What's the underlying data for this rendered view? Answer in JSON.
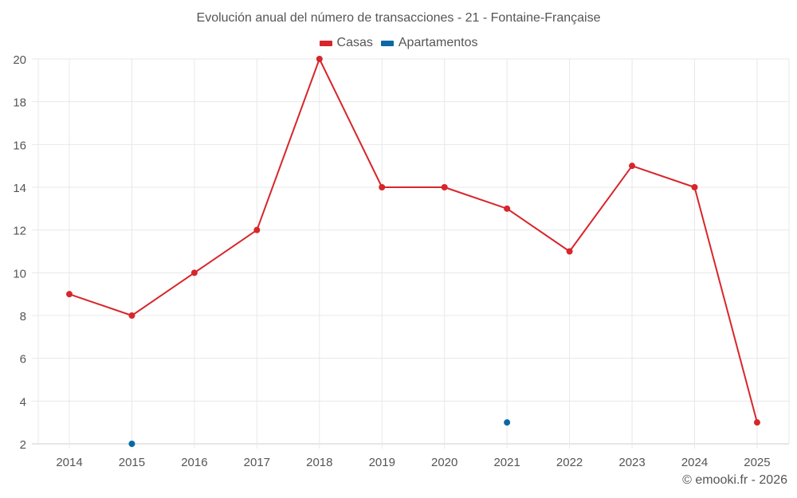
{
  "title": "Evolución anual del número de transacciones - 21 - Fontaine-Française",
  "legend": [
    {
      "label": "Casas",
      "color": "#d7262b"
    },
    {
      "label": "Apartamentos",
      "color": "#0a69a4"
    }
  ],
  "credit": "© emooki.fr - 2026",
  "chart_data": {
    "type": "line",
    "title": "Evolución anual del número de transacciones - 21 - Fontaine-Française",
    "xlabel": "",
    "ylabel": "",
    "categories": [
      "2014",
      "2015",
      "2016",
      "2017",
      "2018",
      "2019",
      "2020",
      "2021",
      "2022",
      "2023",
      "2024",
      "2025"
    ],
    "series": [
      {
        "name": "Casas",
        "color": "#d7262b",
        "values": [
          9,
          8,
          10,
          12,
          20,
          14,
          14,
          13,
          11,
          15,
          14,
          3
        ]
      },
      {
        "name": "Apartamentos",
        "color": "#0a69a4",
        "values": [
          null,
          2,
          null,
          null,
          null,
          null,
          null,
          3,
          null,
          null,
          null,
          null
        ]
      }
    ],
    "ylim": [
      2,
      20
    ],
    "yticks": [
      2,
      4,
      6,
      8,
      10,
      12,
      14,
      16,
      18,
      20
    ],
    "grid": true,
    "legend_position": "top"
  }
}
